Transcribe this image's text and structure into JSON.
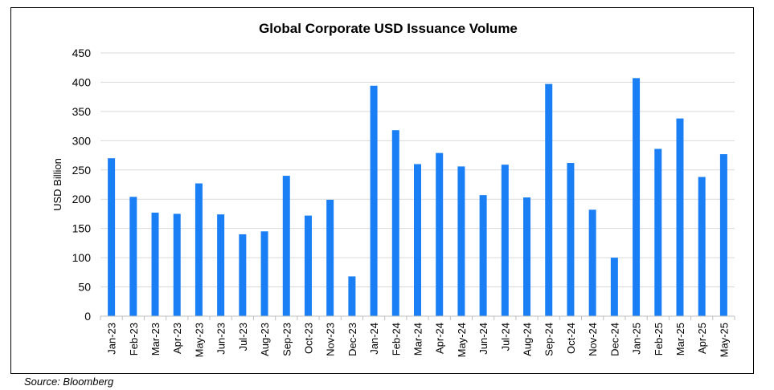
{
  "chart_data": {
    "type": "bar",
    "title": "Global Corporate USD Issuance Volume",
    "xlabel": "",
    "ylabel": "USD Billion",
    "ylim": [
      0,
      450
    ],
    "yticks": [
      0,
      50,
      100,
      150,
      200,
      250,
      300,
      350,
      400,
      450
    ],
    "grid": true,
    "legend": "none",
    "categories": [
      "Jan-23",
      "Feb-23",
      "Mar-23",
      "Apr-23",
      "May-23",
      "Jun-23",
      "Jul-23",
      "Aug-23",
      "Sep-23",
      "Oct-23",
      "Nov-23",
      "Dec-23",
      "Jan-24",
      "Feb-24",
      "Mar-24",
      "Apr-24",
      "May-24",
      "Jun-24",
      "Jul-24",
      "Aug-24",
      "Sep-24",
      "Oct-24",
      "Nov-24",
      "Dec-24",
      "Jan-25",
      "Feb-25",
      "Mar-25",
      "Apr-25",
      "May-25"
    ],
    "values": [
      270,
      204,
      177,
      175,
      227,
      174,
      140,
      145,
      240,
      172,
      199,
      68,
      394,
      318,
      260,
      279,
      256,
      207,
      259,
      203,
      397,
      262,
      182,
      100,
      407,
      286,
      338,
      238,
      277
    ],
    "bar_color": "#1a7ff5"
  },
  "source": "Source: Bloomberg"
}
